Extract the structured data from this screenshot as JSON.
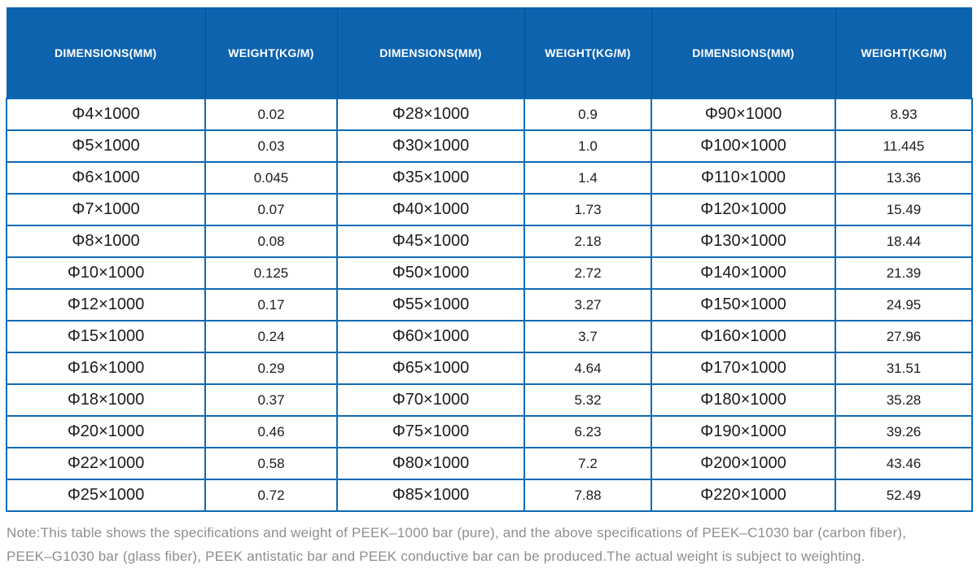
{
  "table": {
    "headers": [
      "DIMENSIONS(MM)",
      "WEIGHT(KG/M)",
      "DIMENSIONS(MM)",
      "WEIGHT(KG/M)",
      "DIMENSIONS(MM)",
      "WEIGHT(KG/M)"
    ],
    "rows": [
      [
        "Φ4×1000",
        "0.02",
        "Φ28×1000",
        "0.9",
        "Φ90×1000",
        "8.93"
      ],
      [
        "Φ5×1000",
        "0.03",
        "Φ30×1000",
        "1.0",
        "Φ100×1000",
        "11.445"
      ],
      [
        "Φ6×1000",
        "0.045",
        "Φ35×1000",
        "1.4",
        "Φ110×1000",
        "13.36"
      ],
      [
        "Φ7×1000",
        "0.07",
        "Φ40×1000",
        "1.73",
        "Φ120×1000",
        "15.49"
      ],
      [
        "Φ8×1000",
        "0.08",
        "Φ45×1000",
        "2.18",
        "Φ130×1000",
        "18.44"
      ],
      [
        "Φ10×1000",
        "0.125",
        "Φ50×1000",
        "2.72",
        "Φ140×1000",
        "21.39"
      ],
      [
        "Φ12×1000",
        "0.17",
        "Φ55×1000",
        "3.27",
        "Φ150×1000",
        "24.95"
      ],
      [
        "Φ15×1000",
        "0.24",
        "Φ60×1000",
        "3.7",
        "Φ160×1000",
        "27.96"
      ],
      [
        "Φ16×1000",
        "0.29",
        "Φ65×1000",
        "4.64",
        "Φ170×1000",
        "31.51"
      ],
      [
        "Φ18×1000",
        "0.37",
        "Φ70×1000",
        "5.32",
        "Φ180×1000",
        "35.28"
      ],
      [
        "Φ20×1000",
        "0.46",
        "Φ75×1000",
        "6.23",
        "Φ190×1000",
        "39.26"
      ],
      [
        "Φ22×1000",
        "0.58",
        "Φ80×1000",
        "7.2",
        "Φ200×1000",
        "43.46"
      ],
      [
        "Φ25×1000",
        "0.72",
        "Φ85×1000",
        "7.88",
        "Φ220×1000",
        "52.49"
      ]
    ]
  },
  "note": {
    "lines": [
      "Note:This table shows the specifications and weight of PEEK–1000 bar (pure), and the above specifications of PEEK–C1030 bar (carbon fiber),",
      "PEEK–G1030 bar (glass fiber), PEEK antistatic bar and PEEK conductive bar can be produced.The actual weight is subject to weighting."
    ]
  },
  "colors": {
    "header_bg": "#0d63ae",
    "header_separator": "#0a4e91",
    "border": "#0e6ab4",
    "note_text": "#8b8f92"
  }
}
